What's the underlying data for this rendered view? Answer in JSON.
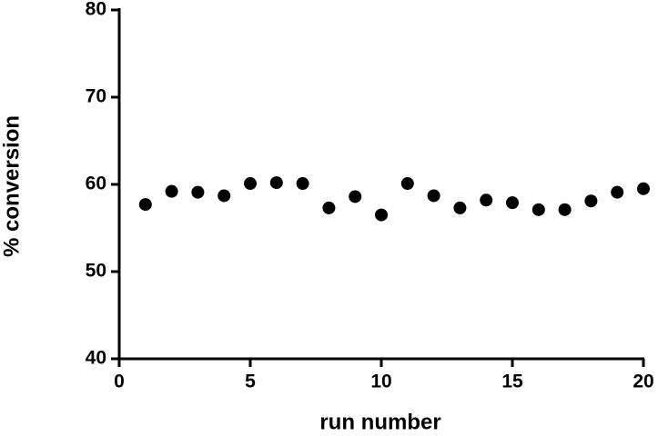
{
  "chart_data": {
    "type": "scatter",
    "x_label": "run number",
    "y_label": "% conversion",
    "x": [
      1,
      2,
      3,
      4,
      5,
      6,
      7,
      8,
      9,
      10,
      11,
      12,
      13,
      14,
      15,
      16,
      17,
      18,
      19,
      20
    ],
    "values": [
      57.7,
      59.2,
      59.1,
      58.7,
      60.1,
      60.2,
      60.1,
      57.3,
      58.6,
      56.5,
      60.1,
      58.7,
      57.3,
      58.2,
      57.9,
      57.1,
      57.1,
      58.1,
      59.1,
      59.5
    ],
    "color": "#000000",
    "xlim": [
      0,
      20
    ],
    "xticks": [
      0,
      5,
      10,
      15,
      20
    ],
    "ylim": [
      40,
      80
    ],
    "yticks": [
      40,
      50,
      60,
      70,
      80
    ]
  }
}
